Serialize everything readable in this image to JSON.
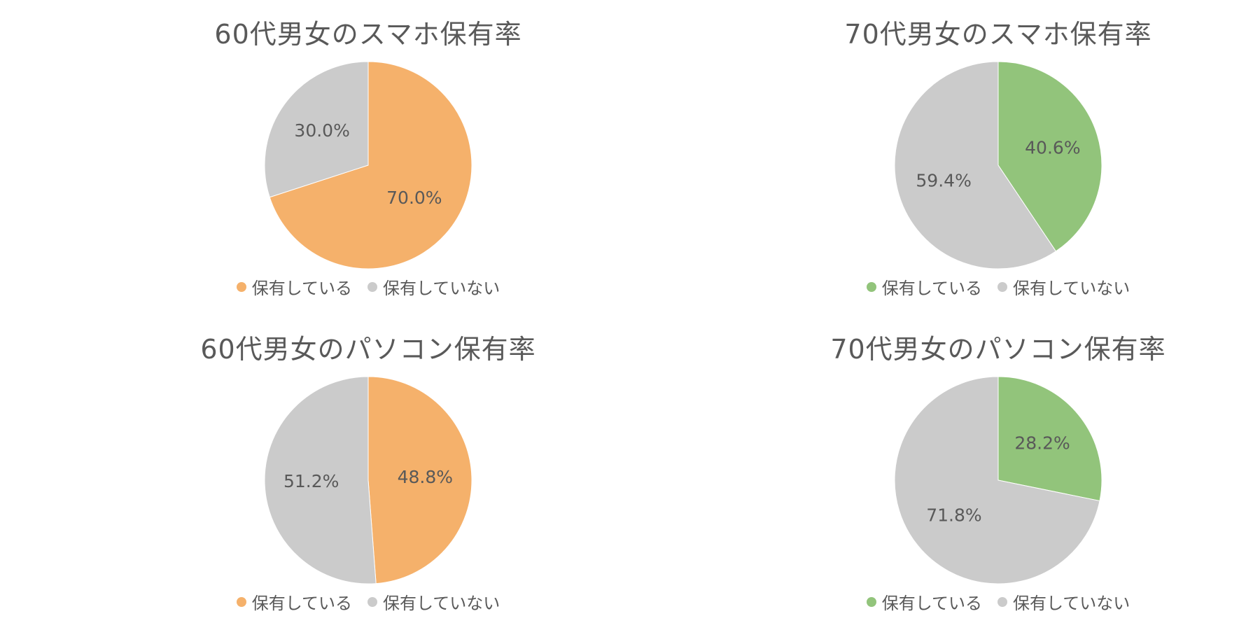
{
  "chart_data": [
    {
      "type": "pie",
      "title": "60代男女のスマホ保有率",
      "categories": [
        "保有している",
        "保有していない"
      ],
      "values": [
        70.0,
        30.0
      ],
      "labels": [
        "70.0%",
        "30.0%"
      ],
      "colors": [
        "#F5B16B",
        "#CBCBCB"
      ],
      "legend": "bottom"
    },
    {
      "type": "pie",
      "title": "70代男女のスマホ保有率",
      "categories": [
        "保有している",
        "保有していない"
      ],
      "values": [
        40.6,
        59.4
      ],
      "labels": [
        "40.6%",
        "59.4%"
      ],
      "colors": [
        "#92C47B",
        "#CBCBCB"
      ],
      "legend": "bottom"
    },
    {
      "type": "pie",
      "title": "60代男女のパソコン保有率",
      "categories": [
        "保有している",
        "保有していない"
      ],
      "values": [
        48.8,
        51.2
      ],
      "labels": [
        "48.8%",
        "51.2%"
      ],
      "colors": [
        "#F5B16B",
        "#CBCBCB"
      ],
      "legend": "bottom"
    },
    {
      "type": "pie",
      "title": "70代男女のパソコン保有率",
      "categories": [
        "保有している",
        "保有していない"
      ],
      "values": [
        28.2,
        71.8
      ],
      "labels": [
        "28.2%",
        "71.8%"
      ],
      "colors": [
        "#92C47B",
        "#CBCBCB"
      ],
      "legend": "bottom"
    }
  ],
  "colors": {
    "text": "#595959",
    "background": "#FFFFFF"
  }
}
